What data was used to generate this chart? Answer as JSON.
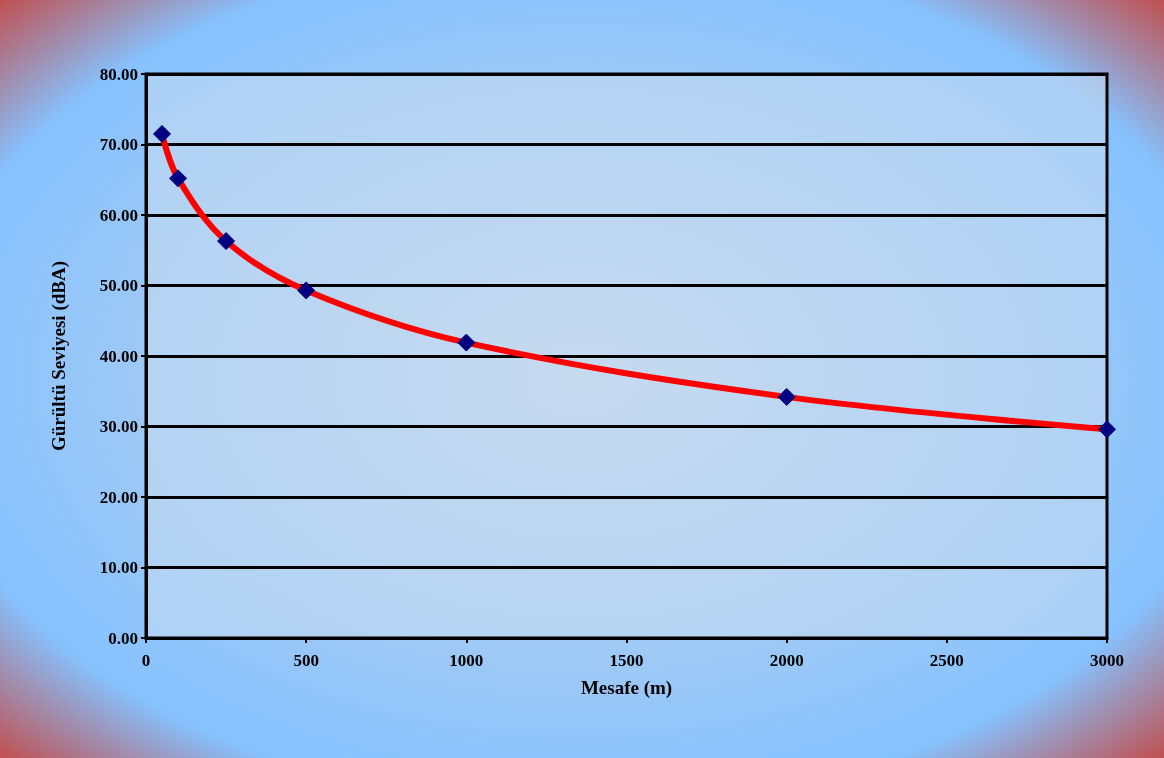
{
  "chart_data": {
    "type": "line",
    "xlabel": "Mesafe (m)",
    "ylabel": "Gürültü Seviyesi (dBA)",
    "x": [
      50,
      100,
      250,
      500,
      1000,
      2000,
      3000
    ],
    "series": [
      {
        "color": "#ff0000",
        "values": [
          71.5,
          65.2,
          56.3,
          49.3,
          41.9,
          34.2,
          29.6
        ]
      }
    ],
    "xlim": [
      0,
      3000
    ],
    "xticks": [
      0,
      500,
      1000,
      1500,
      2000,
      2500,
      3000
    ],
    "ylim": [
      0,
      80
    ],
    "yticks": [
      {
        "value": 0,
        "label": "0.00"
      },
      {
        "value": 10,
        "label": "10.00"
      },
      {
        "value": 20,
        "label": "20.00"
      },
      {
        "value": 30,
        "label": "30.00"
      },
      {
        "value": 40,
        "label": "40.00"
      },
      {
        "value": 50,
        "label": "50.00"
      },
      {
        "value": 60,
        "label": "60.00"
      },
      {
        "value": 70,
        "label": "70.00"
      },
      {
        "value": 80,
        "label": "80.00"
      }
    ],
    "grid": "y",
    "marker": "diamond"
  }
}
